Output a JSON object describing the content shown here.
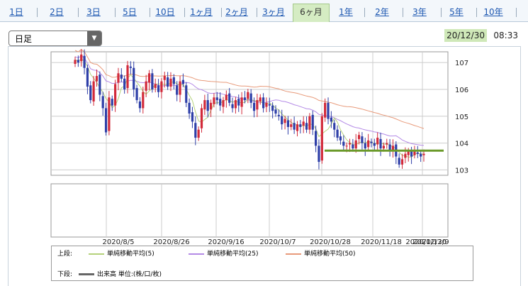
{
  "tabs": [
    {
      "label": "1日"
    },
    {
      "label": "2日"
    },
    {
      "label": "3日"
    },
    {
      "label": "5日"
    },
    {
      "label": "10日"
    },
    {
      "label": "1ヶ月"
    },
    {
      "label": "2ヶ月"
    },
    {
      "label": "3ヶ月"
    },
    {
      "label": "6ヶ月",
      "active": true
    },
    {
      "label": "1年"
    },
    {
      "label": "2年"
    },
    {
      "label": "3年"
    },
    {
      "label": "5年"
    },
    {
      "label": "10年"
    }
  ],
  "controls": {
    "period_select": "日足",
    "date": "20/12/30",
    "time": "08:33"
  },
  "chart_data": {
    "type": "candlestick",
    "y_ticks": [
      "107",
      "106",
      "105",
      "104",
      "103"
    ],
    "ylim": [
      102.8,
      107.4
    ],
    "x_ticks": [
      "2020/8/5",
      "2020/8/26",
      "2020/9/16",
      "2020/10/7",
      "2020/10/28",
      "2020/11/18",
      "2020/12/9",
      "2020/12/30"
    ],
    "upper_legend": {
      "label": "上段:",
      "series": [
        {
          "name": "単純移動平均(5)",
          "color": "#b5d27a"
        },
        {
          "name": "単純移動平均(25)",
          "color": "#b48ae6"
        },
        {
          "name": "単純移動平均(50)",
          "color": "#e89a7a"
        }
      ]
    },
    "lower_legend": {
      "label": "下段:",
      "series": [
        {
          "name": "出来高 単位:(株/口/枚)",
          "color": "#666666"
        }
      ]
    },
    "colors": {
      "up": "#d22a3a",
      "down": "#2e3fa8",
      "hline": "#6b9a2a",
      "grid": "#cccccc"
    },
    "support_line": 103.72,
    "closes": [
      107.1,
      107.0,
      107.3,
      106.8,
      106.1,
      105.6,
      106.3,
      106.5,
      105.8,
      105.3,
      104.4,
      105.7,
      105.4,
      106.2,
      106.6,
      106.4,
      106.0,
      106.9,
      106.8,
      106.0,
      105.6,
      105.3,
      105.9,
      106.3,
      106.6,
      106.0,
      106.2,
      105.9,
      106.3,
      106.5,
      106.1,
      106.4,
      106.2,
      105.8,
      106.3,
      106.2,
      105.5,
      105.1,
      104.8,
      104.2,
      104.5,
      105.3,
      105.6,
      105.2,
      105.5,
      105.7,
      105.6,
      105.4,
      105.6,
      105.8,
      105.5,
      105.3,
      105.6,
      105.4,
      105.7,
      105.6,
      105.9,
      105.5,
      105.2,
      105.6,
      105.7,
      105.3,
      105.5,
      105.4,
      105.2,
      105.1,
      105.0,
      104.7,
      104.9,
      104.6,
      104.7,
      104.5,
      104.7,
      104.6,
      104.8,
      104.5,
      105.0,
      104.5,
      103.9,
      103.3,
      105.0,
      105.5,
      104.9,
      104.8,
      104.5,
      104.2,
      104.1,
      103.9,
      103.9,
      104.0,
      103.8,
      104.1,
      104.3,
      104.0,
      103.8,
      104.1,
      104.0,
      103.9,
      104.2,
      103.8,
      103.9,
      104.0,
      103.7,
      103.9,
      103.5,
      103.2,
      103.4,
      103.6,
      103.7,
      103.5,
      103.7,
      103.6,
      103.5,
      103.6
    ]
  }
}
